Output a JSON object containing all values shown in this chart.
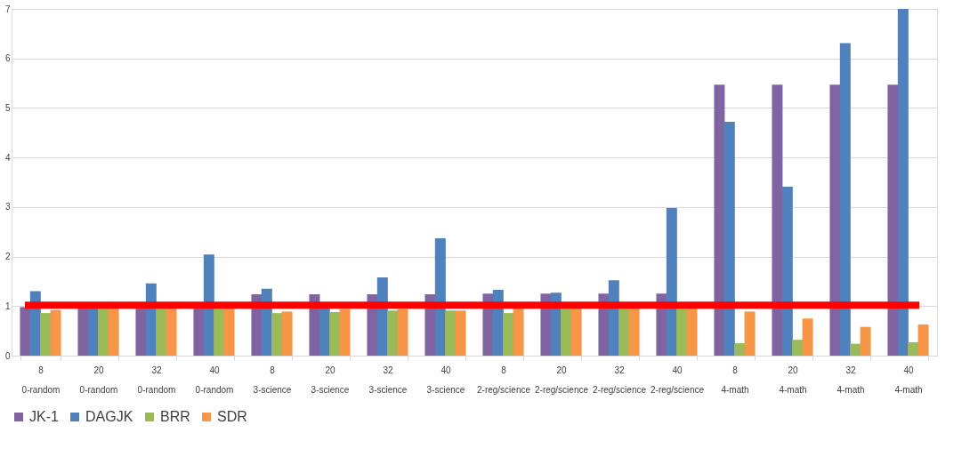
{
  "chart_data": {
    "type": "bar",
    "categories": [
      "8\n0-random",
      "20\n0-random",
      "32\n0-random",
      "40\n0-random",
      "8\n3-science",
      "20\n3-science",
      "32\n3-science",
      "40\n3-science",
      "8\n2-reg/science",
      "20\n2-reg/science",
      "32\n2-reg/science",
      "40\n2-reg/science",
      "8\n4-math",
      "20\n4-math",
      "32\n4-math",
      "40\n4-math"
    ],
    "series": [
      {
        "name": "JK-1",
        "color": "#8064a2",
        "values": [
          0.98,
          0.98,
          0.98,
          0.98,
          1.24,
          1.24,
          1.24,
          1.24,
          1.25,
          1.25,
          1.25,
          1.25,
          5.47,
          5.47,
          5.47,
          5.47
        ]
      },
      {
        "name": "DAGJK",
        "color": "#4f81bd",
        "values": [
          1.3,
          0.98,
          1.46,
          2.04,
          1.35,
          0.98,
          1.58,
          2.37,
          1.33,
          1.27,
          1.52,
          2.98,
          4.72,
          3.41,
          6.31,
          7.0
        ]
      },
      {
        "name": "BRR",
        "color": "#9bbb59",
        "values": [
          0.86,
          0.98,
          0.98,
          0.98,
          0.86,
          0.88,
          0.91,
          0.91,
          0.86,
          0.98,
          0.98,
          0.98,
          0.25,
          0.32,
          0.24,
          0.27
        ]
      },
      {
        "name": "SDR",
        "color": "#f79646",
        "values": [
          0.92,
          0.98,
          0.98,
          0.98,
          0.89,
          0.94,
          0.94,
          0.91,
          0.98,
          0.98,
          0.98,
          0.98,
          0.89,
          0.75,
          0.58,
          0.63
        ]
      }
    ],
    "ylim": [
      0,
      7
    ],
    "yticks": [
      0,
      1,
      2,
      3,
      4,
      5,
      6,
      7
    ],
    "grid": "y",
    "legend": "bottom",
    "ref_lines": [
      {
        "axis": "y",
        "value": 1.02,
        "color": "#ff0000"
      }
    ]
  }
}
